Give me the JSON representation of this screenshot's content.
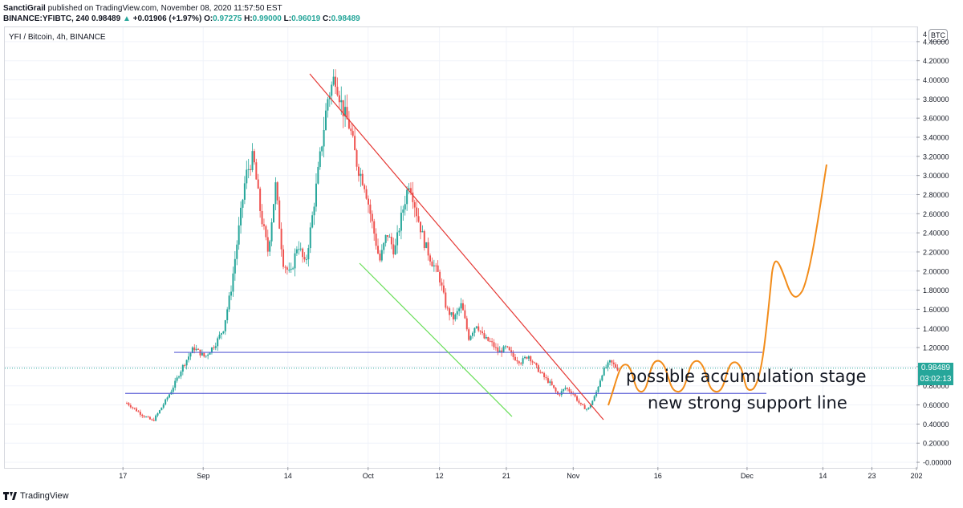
{
  "header": {
    "author": "SanctiGrail",
    "published_text": "published on TradingView.com, November 08, 2020 11:57:50 EST",
    "symbol_line": "BINANCE:YFIBTC, 240",
    "last": "0.98489",
    "change_arrow": "▲",
    "change": "+0.01906 (+1.97%)",
    "o_label": "O:",
    "o_value": "0.97275",
    "h_label": "H:",
    "h_value": "0.99000",
    "l_label": "L:",
    "l_value": "0.96019",
    "c_label": "C:",
    "c_value": "0.98489"
  },
  "pane": {
    "title": "YFI / Bitcoin, 4h, BINANCE",
    "currency_badge": "BTC",
    "price_label": "0.98489",
    "countdown_label": "03:02:13"
  },
  "annotations": {
    "line1": "possible accumulation stage",
    "line2": "new strong support line"
  },
  "footer": {
    "brand": "TradingView",
    "icon": "tradingview-logo-icon"
  },
  "colors": {
    "up": "#26a69a",
    "down": "#ef5350",
    "red_line": "#e53935",
    "green_line": "#66dd55",
    "blue_line": "#5b5fd6",
    "projection": "#f28c1a",
    "price_line": "#26a69a"
  },
  "chart_data": {
    "type": "candlestick",
    "y_axis_ticks": [
      "4.40000",
      "4.20000",
      "4.00000",
      "3.80000",
      "3.60000",
      "3.40000",
      "3.20000",
      "3.00000",
      "2.80000",
      "2.60000",
      "2.40000",
      "2.20000",
      "2.00000",
      "1.80000",
      "1.60000",
      "1.40000",
      "1.20000",
      "1.00000",
      "0.80000",
      "0.60000",
      "0.40000",
      "0.20000",
      "-0.00000"
    ],
    "y_axis_top_partial": "4",
    "ylim": [
      -0.05,
      4.55
    ],
    "x_axis_ticks": [
      {
        "label": "17",
        "pos": 0.11
      },
      {
        "label": "Sep",
        "pos": 0.2
      },
      {
        "label": "14",
        "pos": 0.295
      },
      {
        "label": "Oct",
        "pos": 0.385
      },
      {
        "label": "12",
        "pos": 0.465
      },
      {
        "label": "21",
        "pos": 0.54
      },
      {
        "label": "Nov",
        "pos": 0.615
      },
      {
        "label": "16",
        "pos": 0.71
      },
      {
        "label": "Dec",
        "pos": 0.81
      },
      {
        "label": "14",
        "pos": 0.895
      },
      {
        "label": "23",
        "pos": 0.95
      },
      {
        "label": "202",
        "pos": 1.0
      }
    ],
    "price_path": [
      [
        0.0,
        0.62
      ],
      [
        0.02,
        0.5
      ],
      [
        0.035,
        0.43
      ],
      [
        0.045,
        0.55
      ],
      [
        0.06,
        0.75
      ],
      [
        0.075,
        1.0
      ],
      [
        0.09,
        1.2
      ],
      [
        0.105,
        1.1
      ],
      [
        0.12,
        1.25
      ],
      [
        0.13,
        1.4
      ],
      [
        0.14,
        1.8
      ],
      [
        0.15,
        2.4
      ],
      [
        0.16,
        3.0
      ],
      [
        0.17,
        3.2
      ],
      [
        0.18,
        2.6
      ],
      [
        0.19,
        2.2
      ],
      [
        0.2,
        2.9
      ],
      [
        0.21,
        2.1
      ],
      [
        0.22,
        1.95
      ],
      [
        0.23,
        2.3
      ],
      [
        0.24,
        2.05
      ],
      [
        0.25,
        2.6
      ],
      [
        0.26,
        3.2
      ],
      [
        0.27,
        3.8
      ],
      [
        0.28,
        4.05
      ],
      [
        0.29,
        3.7
      ],
      [
        0.3,
        3.5
      ],
      [
        0.31,
        3.1
      ],
      [
        0.32,
        2.9
      ],
      [
        0.33,
        2.5
      ],
      [
        0.34,
        2.1
      ],
      [
        0.35,
        2.4
      ],
      [
        0.36,
        2.2
      ],
      [
        0.37,
        2.6
      ],
      [
        0.38,
        2.95
      ],
      [
        0.39,
        2.6
      ],
      [
        0.4,
        2.3
      ],
      [
        0.41,
        2.1
      ],
      [
        0.42,
        1.95
      ],
      [
        0.43,
        1.6
      ],
      [
        0.44,
        1.5
      ],
      [
        0.45,
        1.65
      ],
      [
        0.46,
        1.3
      ],
      [
        0.47,
        1.45
      ],
      [
        0.48,
        1.3
      ],
      [
        0.49,
        1.25
      ],
      [
        0.5,
        1.15
      ],
      [
        0.51,
        1.2
      ],
      [
        0.52,
        1.1
      ],
      [
        0.53,
        1.05
      ],
      [
        0.54,
        1.12
      ],
      [
        0.55,
        1.0
      ],
      [
        0.56,
        0.9
      ],
      [
        0.57,
        0.82
      ],
      [
        0.58,
        0.7
      ],
      [
        0.59,
        0.78
      ],
      [
        0.6,
        0.72
      ],
      [
        0.61,
        0.6
      ],
      [
        0.62,
        0.55
      ],
      [
        0.63,
        0.7
      ],
      [
        0.64,
        0.95
      ],
      [
        0.65,
        1.05
      ],
      [
        0.66,
        0.98
      ]
    ],
    "horizontal_levels": [
      1.15,
      0.72
    ],
    "price_line": 0.98489,
    "candles": {
      "count": 255,
      "date_range_shown": [
        "17",
        "Nov"
      ]
    }
  }
}
